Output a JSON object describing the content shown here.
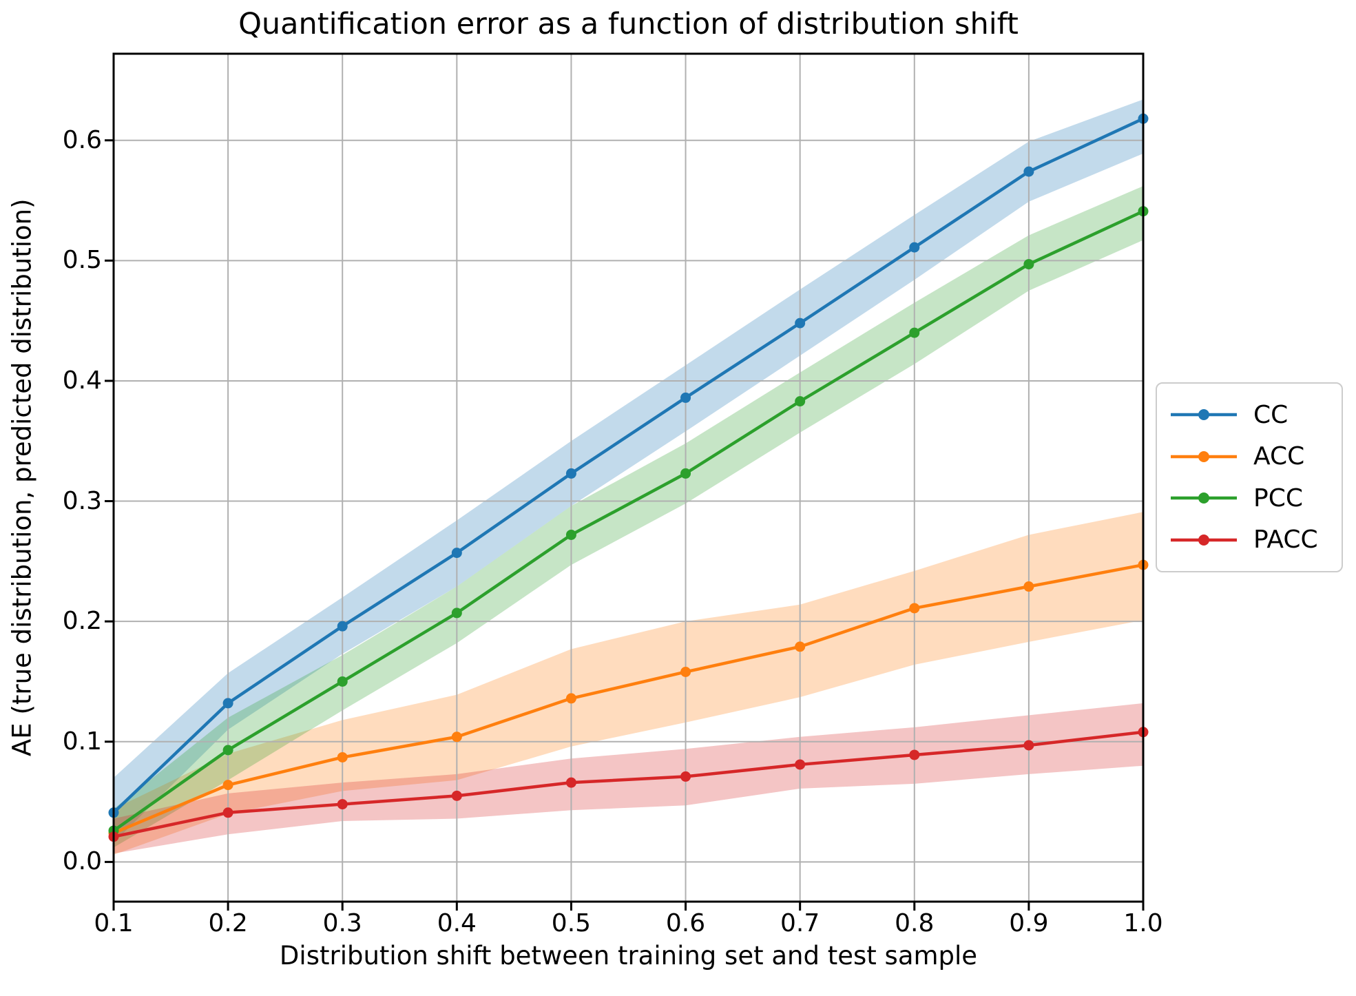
{
  "chart_data": {
    "type": "line",
    "title": "Quantification error as a function of distribution shift",
    "xlabel": "Distribution shift between training set and test sample",
    "ylabel": "AE (true distribution, predicted distribution)",
    "x": [
      0.1,
      0.2,
      0.3,
      0.4,
      0.5,
      0.6,
      0.7,
      0.8,
      0.9,
      1.0
    ],
    "xlim": [
      0.1,
      1.0
    ],
    "ylim": [
      -0.033,
      0.672
    ],
    "xticks": {
      "values": [
        0.1,
        0.2,
        0.3,
        0.4,
        0.5,
        0.6,
        0.7,
        0.8,
        0.9,
        1.0
      ],
      "labels": [
        "0.1",
        "0.2",
        "0.3",
        "0.4",
        "0.5",
        "0.6",
        "0.7",
        "0.8",
        "0.9",
        "1.0"
      ]
    },
    "yticks": {
      "values": [
        0.0,
        0.1,
        0.2,
        0.3,
        0.4,
        0.5,
        0.6
      ],
      "labels": [
        "0.0",
        "0.1",
        "0.2",
        "0.3",
        "0.4",
        "0.5",
        "0.6"
      ]
    },
    "grid": true,
    "legend_position": "right-outside",
    "grid_color": "#b0b0b0",
    "spine_color": "#000000",
    "band_opacity": 0.27,
    "series": [
      {
        "name": "CC",
        "color": "#1f77b4",
        "values": [
          0.041,
          0.132,
          0.196,
          0.257,
          0.323,
          0.386,
          0.448,
          0.511,
          0.574,
          0.618
        ],
        "band_low": [
          0.016,
          0.11,
          0.173,
          0.229,
          0.296,
          0.358,
          0.421,
          0.484,
          0.549,
          0.589
        ],
        "band_high": [
          0.07,
          0.157,
          0.22,
          0.284,
          0.35,
          0.413,
          0.476,
          0.538,
          0.599,
          0.634
        ]
      },
      {
        "name": "ACC",
        "color": "#ff7f0e",
        "values": [
          0.024,
          0.064,
          0.087,
          0.104,
          0.136,
          0.158,
          0.179,
          0.211,
          0.229,
          0.247
        ],
        "band_low": [
          0.006,
          0.04,
          0.059,
          0.068,
          0.096,
          0.116,
          0.137,
          0.164,
          0.183,
          0.201
        ],
        "band_high": [
          0.044,
          0.09,
          0.118,
          0.139,
          0.177,
          0.2,
          0.214,
          0.242,
          0.272,
          0.291
        ]
      },
      {
        "name": "PCC",
        "color": "#2ca02c",
        "values": [
          0.026,
          0.093,
          0.15,
          0.207,
          0.272,
          0.323,
          0.383,
          0.44,
          0.497,
          0.541
        ],
        "band_low": [
          0.012,
          0.068,
          0.126,
          0.182,
          0.247,
          0.298,
          0.357,
          0.414,
          0.475,
          0.517
        ],
        "band_high": [
          0.044,
          0.12,
          0.172,
          0.229,
          0.296,
          0.348,
          0.407,
          0.465,
          0.521,
          0.562
        ]
      },
      {
        "name": "PACC",
        "color": "#d62728",
        "values": [
          0.021,
          0.041,
          0.048,
          0.055,
          0.066,
          0.071,
          0.081,
          0.089,
          0.097,
          0.108
        ],
        "band_low": [
          0.007,
          0.023,
          0.034,
          0.036,
          0.043,
          0.047,
          0.061,
          0.065,
          0.073,
          0.08
        ],
        "band_high": [
          0.036,
          0.057,
          0.066,
          0.073,
          0.086,
          0.094,
          0.104,
          0.112,
          0.122,
          0.132
        ]
      }
    ]
  }
}
